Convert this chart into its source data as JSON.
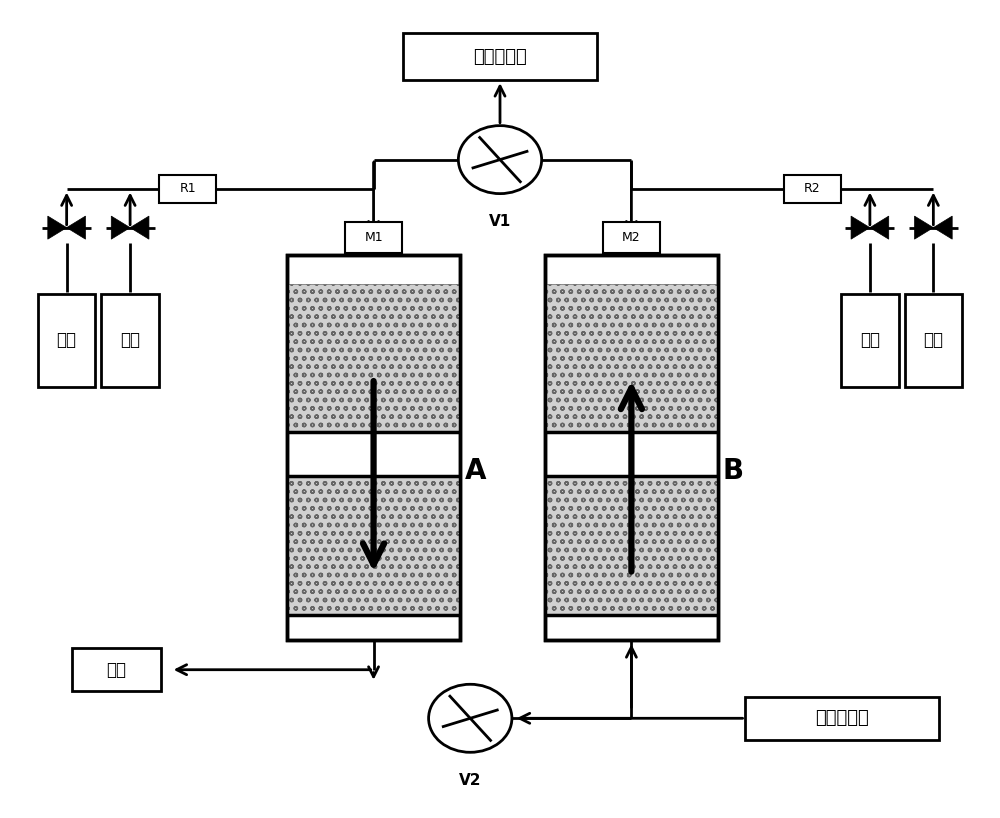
{
  "bg_color": "#ffffff",
  "label_hot_gas": "气体（热）",
  "label_cold_gas": "气体（冷）",
  "label_flue": "烟气",
  "label_fuel": "燃气",
  "label_air": "空气",
  "label_V1": "V1",
  "label_V2": "V2",
  "label_M1": "M1",
  "label_M2": "M2",
  "label_R1": "R1",
  "label_R2": "R2",
  "label_A": "A",
  "label_B": "B",
  "fig_width": 10.0,
  "fig_height": 8.18
}
